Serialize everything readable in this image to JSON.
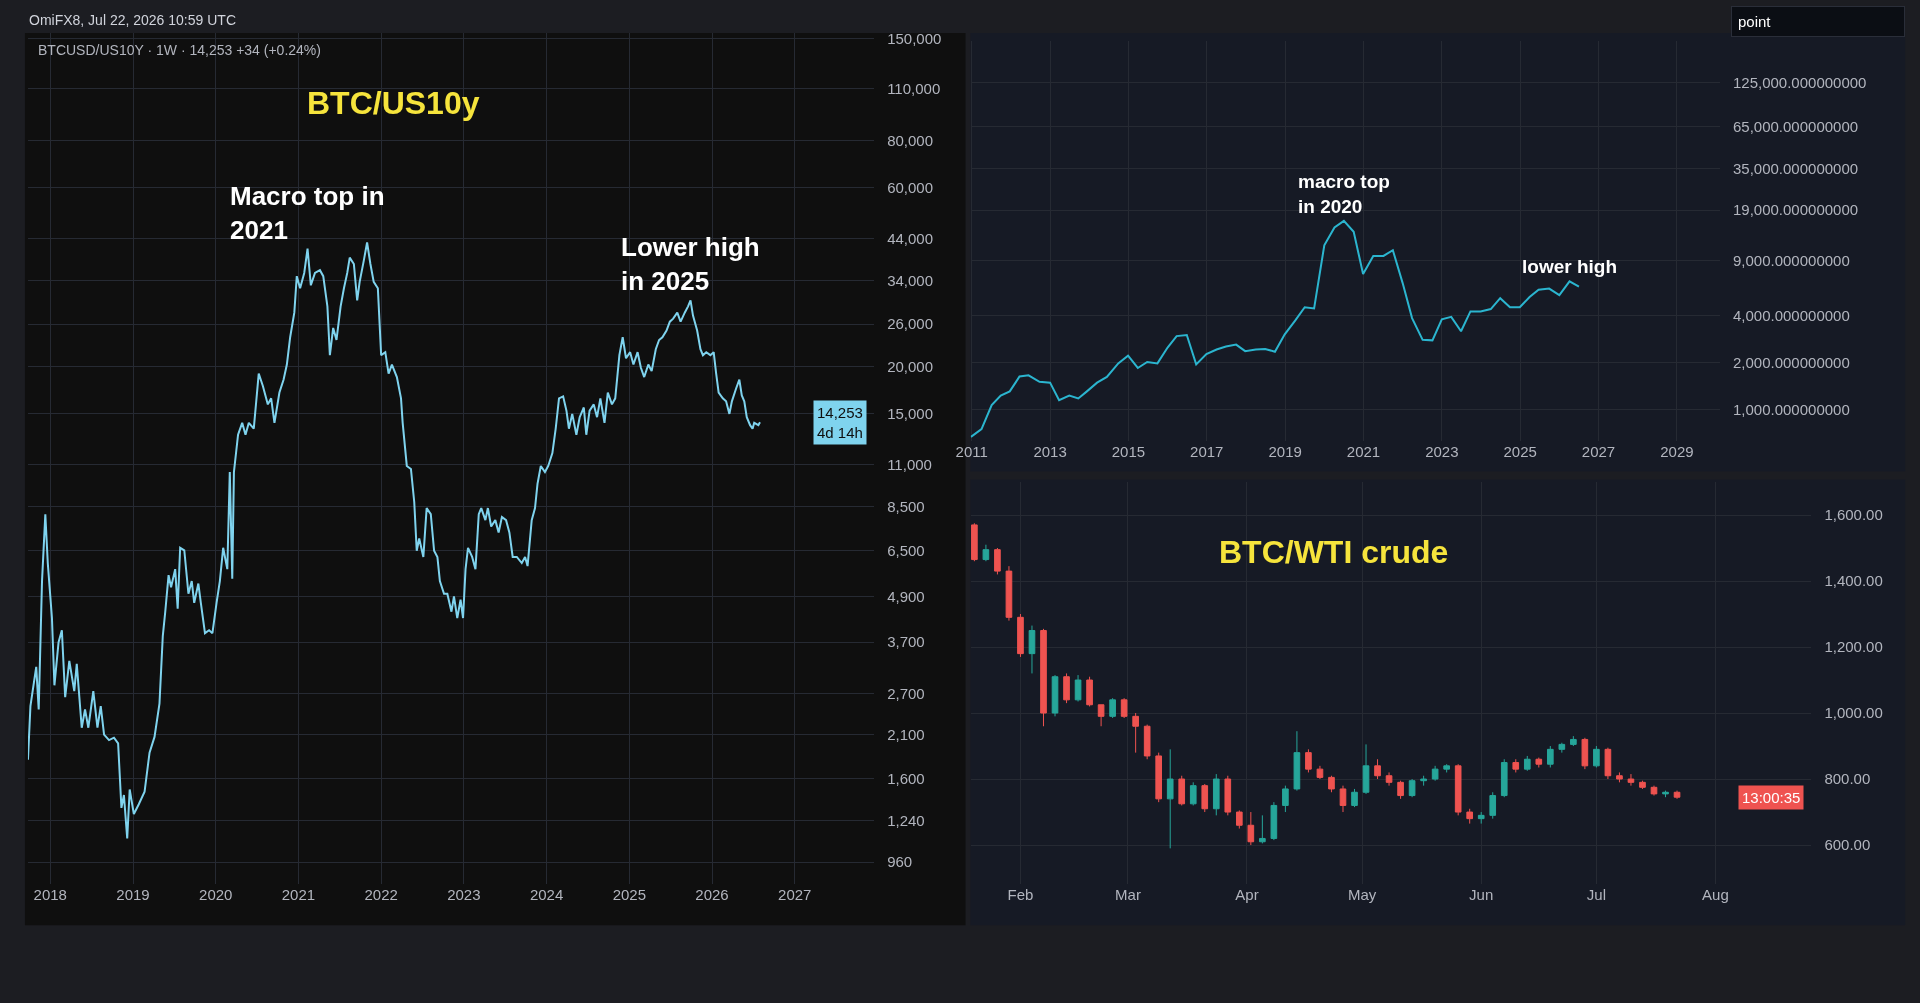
{
  "chart_data": [
    {
      "type": "line",
      "title": "BTC/US10y",
      "subtitle": "BTCUSD/US10Y · 1W · 14,253 +34 (+0.24%)",
      "log": true,
      "grid": true,
      "xlim": [
        2017.73,
        2027.96
      ],
      "xticks": [
        2018,
        2019,
        2020,
        2021,
        2022,
        2023,
        2024,
        2025,
        2026,
        2027
      ],
      "ylim": [
        840,
        155000
      ],
      "yticks": [
        {
          "value": 960,
          "label": "960"
        },
        {
          "value": 1240,
          "label": "1,240"
        },
        {
          "value": 1600,
          "label": "1,600"
        },
        {
          "value": 2100,
          "label": "2,100"
        },
        {
          "value": 2700,
          "label": "2,700"
        },
        {
          "value": 3700,
          "label": "3,700"
        },
        {
          "value": 4900,
          "label": "4,900"
        },
        {
          "value": 6500,
          "label": "6,500"
        },
        {
          "value": 8500,
          "label": "8,500"
        },
        {
          "value": 11000,
          "label": "11,000"
        },
        {
          "value": 15000,
          "label": "15,000"
        },
        {
          "value": 20000,
          "label": "20,000"
        },
        {
          "value": 26000,
          "label": "26,000"
        },
        {
          "value": 34000,
          "label": "34,000"
        },
        {
          "value": 44000,
          "label": "44,000"
        },
        {
          "value": 60000,
          "label": "60,000"
        },
        {
          "value": 80000,
          "label": "80,000"
        },
        {
          "value": 110000,
          "label": "110,000"
        },
        {
          "value": 150000,
          "label": "150,000"
        }
      ],
      "x": [
        2017.73,
        2017.76,
        2017.83,
        2017.86,
        2017.9,
        2017.94,
        2017.97,
        2018.02,
        2018.05,
        2018.1,
        2018.14,
        2018.18,
        2018.23,
        2018.29,
        2018.32,
        2018.38,
        2018.42,
        2018.46,
        2018.52,
        2018.57,
        2018.61,
        2018.65,
        2018.71,
        2018.77,
        2018.82,
        2018.86,
        2018.89,
        2018.93,
        2018.96,
        2019.01,
        2019.07,
        2019.14,
        2019.2,
        2019.26,
        2019.32,
        2019.36,
        2019.39,
        2019.43,
        2019.46,
        2019.51,
        2019.54,
        2019.57,
        2019.62,
        2019.67,
        2019.71,
        2019.74,
        2019.79,
        2019.82,
        2019.87,
        2019.92,
        2019.96,
        2020.01,
        2020.05,
        2020.09,
        2020.14,
        2020.17,
        2020.2,
        2020.22,
        2020.27,
        2020.32,
        2020.36,
        2020.4,
        2020.46,
        2020.52,
        2020.57,
        2020.63,
        2020.67,
        2020.71,
        2020.77,
        2020.82,
        2020.86,
        2020.9,
        2020.95,
        2020.98,
        2021.02,
        2021.07,
        2021.11,
        2021.15,
        2021.2,
        2021.26,
        2021.3,
        2021.35,
        2021.38,
        2021.42,
        2021.46,
        2021.51,
        2021.55,
        2021.59,
        2021.62,
        2021.67,
        2021.71,
        2021.74,
        2021.79,
        2021.83,
        2021.87,
        2021.91,
        2021.96,
        2022.0,
        2022.05,
        2022.09,
        2022.13,
        2022.19,
        2022.24,
        2022.26,
        2022.31,
        2022.36,
        2022.4,
        2022.43,
        2022.46,
        2022.51,
        2022.55,
        2022.6,
        2022.64,
        2022.68,
        2022.71,
        2022.76,
        2022.8,
        2022.85,
        2022.88,
        2022.92,
        2022.96,
        2022.99,
        2023.02,
        2023.05,
        2023.1,
        2023.14,
        2023.18,
        2023.21,
        2023.26,
        2023.29,
        2023.33,
        2023.38,
        2023.42,
        2023.46,
        2023.51,
        2023.55,
        2023.59,
        2023.64,
        2023.7,
        2023.74,
        2023.77,
        2023.82,
        2023.86,
        2023.89,
        2023.93,
        2023.98,
        2024.02,
        2024.07,
        2024.11,
        2024.15,
        2024.2,
        2024.24,
        2024.27,
        2024.31,
        2024.36,
        2024.4,
        2024.45,
        2024.48,
        2024.52,
        2024.57,
        2024.61,
        2024.65,
        2024.7,
        2024.74,
        2024.79,
        2024.83,
        2024.88,
        2024.92,
        2024.96,
        2025.01,
        2025.05,
        2025.1,
        2025.14,
        2025.18,
        2025.23,
        2025.27,
        2025.32,
        2025.36,
        2025.4,
        2025.45,
        2025.49,
        2025.53,
        2025.58,
        2025.62,
        2025.67,
        2025.71,
        2025.74,
        2025.77,
        2025.82,
        2025.86,
        2025.89,
        2025.93,
        2025.98,
        2026.02,
        2026.05,
        2026.08,
        2026.13,
        2026.17,
        2026.21,
        2026.24,
        2026.29,
        2026.33,
        2026.36,
        2026.39,
        2026.42,
        2026.46,
        2026.49,
        2026.51,
        2026.56,
        2026.58
      ],
      "series": [
        {
          "color": "#7fd3ee",
          "values": [
            1800,
            2500,
            3180,
            2450,
            5380,
            8100,
            6000,
            4290,
            2840,
            3700,
            3980,
            2640,
            3300,
            2740,
            3240,
            2190,
            2450,
            2190,
            2740,
            2190,
            2500,
            2100,
            2030,
            2060,
            1990,
            1340,
            1450,
            1110,
            1500,
            1290,
            1370,
            1480,
            1880,
            2070,
            2540,
            3840,
            4460,
            5580,
            5180,
            5790,
            4540,
            6600,
            6500,
            4980,
            5380,
            4710,
            5300,
            4710,
            3910,
            3980,
            3910,
            4710,
            5380,
            6600,
            5790,
            10500,
            5460,
            10500,
            13200,
            14200,
            13200,
            14200,
            13700,
            19200,
            17800,
            15900,
            16500,
            14200,
            17100,
            18500,
            20300,
            24000,
            27900,
            34900,
            32400,
            35600,
            41300,
            33000,
            35600,
            36200,
            34900,
            29000,
            21500,
            25400,
            23600,
            29000,
            32400,
            35600,
            39100,
            37600,
            30100,
            33700,
            38400,
            42900,
            37600,
            33700,
            32400,
            21500,
            21900,
            19200,
            20300,
            18800,
            16500,
            14200,
            10900,
            10700,
            8740,
            6480,
            6990,
            6240,
            8420,
            8110,
            6480,
            6240,
            5380,
            4980,
            4980,
            4460,
            4900,
            4290,
            4800,
            4290,
            5790,
            6600,
            6240,
            5790,
            8110,
            8420,
            7820,
            8420,
            7520,
            7820,
            7250,
            7970,
            7820,
            7250,
            6240,
            6240,
            6010,
            6240,
            5900,
            7820,
            8420,
            9770,
            10900,
            10500,
            10900,
            11800,
            13700,
            16500,
            16700,
            15300,
            13700,
            15000,
            13200,
            14700,
            15600,
            13200,
            15300,
            15900,
            14700,
            16500,
            14200,
            17100,
            15900,
            16500,
            21500,
            24000,
            21100,
            21900,
            20300,
            21900,
            19900,
            18800,
            20300,
            19500,
            22300,
            23600,
            24000,
            25000,
            26400,
            26900,
            27900,
            26400,
            27900,
            29000,
            30100,
            27400,
            25000,
            22300,
            21500,
            21900,
            21500,
            21900,
            19200,
            17100,
            16500,
            16200,
            15000,
            16200,
            17500,
            18500,
            16800,
            16200,
            14700,
            14000,
            13700,
            14200,
            14000,
            14253
          ]
        }
      ],
      "annotations": [
        {
          "text": "Macro top in\n2021",
          "x": 2021.11,
          "y": 41300
        },
        {
          "text": "Lower high\nin 2025",
          "x": 2025.74,
          "y": 30100
        },
        "OmiFX8, Jul 22, 2026 10:59 UTC",
        "14,253\n4d 14h"
      ]
    },
    {
      "type": "line",
      "log": true,
      "grid": true,
      "xlim": [
        2010.97,
        2030.1
      ],
      "xticks": [
        2011,
        2013,
        2015,
        2017,
        2019,
        2021,
        2023,
        2025,
        2027,
        2029
      ],
      "ylim": [
        630,
        230000
      ],
      "yticks": [
        {
          "value": 1000,
          "label": "1,000.000000000"
        },
        {
          "value": 2000,
          "label": "2,000.000000000"
        },
        {
          "value": 4000,
          "label": "4,000.000000000"
        },
        {
          "value": 9000,
          "label": "9,000.000000000"
        },
        {
          "value": 19000,
          "label": "19,000.000000000"
        },
        {
          "value": 35000,
          "label": "35,000.000000000"
        },
        {
          "value": 65000,
          "label": "65,000.000000000"
        },
        {
          "value": 125000,
          "label": "125,000.000000000"
        }
      ],
      "x": [
        2010.98,
        2011.25,
        2011.51,
        2011.74,
        2011.97,
        2012.22,
        2012.45,
        2012.73,
        2013.0,
        2013.23,
        2013.49,
        2013.72,
        2013.94,
        2014.2,
        2014.45,
        2014.74,
        2014.99,
        2015.24,
        2015.48,
        2015.74,
        2016.0,
        2016.23,
        2016.49,
        2016.73,
        2016.99,
        2017.25,
        2017.49,
        2017.75,
        2017.98,
        2018.25,
        2018.49,
        2018.74,
        2018.99,
        2019.26,
        2019.5,
        2019.74,
        2020.0,
        2020.26,
        2020.5,
        2020.75,
        2020.99,
        2021.25,
        2021.51,
        2021.75,
        2022.0,
        2022.24,
        2022.51,
        2022.76,
        2023.0,
        2023.24,
        2023.49,
        2023.73,
        2023.99,
        2024.25,
        2024.49,
        2024.74,
        2024.99,
        2025.24,
        2025.47,
        2025.74,
        2026.0,
        2026.26,
        2026.5
      ],
      "series": [
        {
          "color": "#2bb5cf",
          "values": [
            670,
            750,
            1070,
            1230,
            1310,
            1630,
            1660,
            1510,
            1490,
            1150,
            1230,
            1180,
            1310,
            1490,
            1620,
            1980,
            2220,
            1850,
            2020,
            1980,
            2500,
            2960,
            3010,
            1950,
            2270,
            2430,
            2540,
            2610,
            2370,
            2430,
            2450,
            2350,
            3040,
            3730,
            4530,
            4450,
            11300,
            14700,
            16200,
            13800,
            7390,
            9660,
            9660,
            10500,
            6470,
            3860,
            2800,
            2780,
            3790,
            3930,
            3180,
            4260,
            4260,
            4410,
            5180,
            4530,
            4530,
            5270,
            5870,
            5970,
            5420,
            6640,
            6140
          ]
        }
      ],
      "annotations": [
        {
          "text": "macro top\nin 2020",
          "x": 2020.5,
          "y": 16200
        },
        {
          "text": "lower high",
          "x": 2026.26,
          "y": 6640
        },
        "point"
      ]
    },
    {
      "type": "candlestick",
      "title": "BTC/WTI crude",
      "grid": true,
      "xlim": [
        "2026-01-19",
        "2026-08-26"
      ],
      "xticks": [
        {
          "value": "2026-02-01",
          "label": "Feb"
        },
        {
          "value": "2026-03-01",
          "label": "Mar"
        },
        {
          "value": "2026-04-01",
          "label": "Apr"
        },
        {
          "value": "2026-05-01",
          "label": "May"
        },
        {
          "value": "2026-06-01",
          "label": "Jun"
        },
        {
          "value": "2026-07-01",
          "label": "Jul"
        },
        {
          "value": "2026-08-01",
          "label": "Aug"
        }
      ],
      "ylim": [
        482,
        1700
      ],
      "yticks": [
        {
          "value": 600,
          "label": "600.00"
        },
        {
          "value": 800,
          "label": "800.00"
        },
        {
          "value": 1000,
          "label": "1,000.00"
        },
        {
          "value": 1200,
          "label": "1,200.00"
        },
        {
          "value": 1400,
          "label": "1,400.00"
        },
        {
          "value": 1600,
          "label": "1,600.00"
        }
      ],
      "x": [
        "2026-01-20",
        "2026-01-23",
        "2026-01-26",
        "2026-01-29",
        "2026-02-01",
        "2026-02-04",
        "2026-02-07",
        "2026-02-10",
        "2026-02-13",
        "2026-02-16",
        "2026-02-19",
        "2026-02-22",
        "2026-02-25",
        "2026-02-28",
        "2026-03-03",
        "2026-03-06",
        "2026-03-09",
        "2026-03-12",
        "2026-03-15",
        "2026-03-18",
        "2026-03-21",
        "2026-03-24",
        "2026-03-27",
        "2026-03-30",
        "2026-04-02",
        "2026-04-05",
        "2026-04-08",
        "2026-04-11",
        "2026-04-14",
        "2026-04-17",
        "2026-04-20",
        "2026-04-23",
        "2026-04-26",
        "2026-04-29",
        "2026-05-02",
        "2026-05-05",
        "2026-05-08",
        "2026-05-11",
        "2026-05-14",
        "2026-05-17",
        "2026-05-20",
        "2026-05-23",
        "2026-05-26",
        "2026-05-29",
        "2026-06-01",
        "2026-06-04",
        "2026-06-07",
        "2026-06-10",
        "2026-06-13",
        "2026-06-16",
        "2026-06-19",
        "2026-06-22",
        "2026-06-25",
        "2026-06-28",
        "2026-07-01",
        "2026-07-04",
        "2026-07-07",
        "2026-07-10",
        "2026-07-13",
        "2026-07-16",
        "2026-07-19",
        "2026-07-22"
      ],
      "ohlc": [
        [
          1570,
          1575,
          1460,
          1465
        ],
        [
          1465,
          1510,
          1460,
          1495
        ],
        [
          1495,
          1500,
          1420,
          1430
        ],
        [
          1430,
          1445,
          1280,
          1290
        ],
        [
          1290,
          1300,
          1170,
          1180
        ],
        [
          1180,
          1265,
          1120,
          1250
        ],
        [
          1250,
          1255,
          960,
          1000
        ],
        [
          1000,
          1115,
          990,
          1110
        ],
        [
          1110,
          1120,
          1030,
          1040
        ],
        [
          1040,
          1115,
          1035,
          1100
        ],
        [
          1100,
          1110,
          1020,
          1025
        ],
        [
          1025,
          1025,
          960,
          990
        ],
        [
          990,
          1045,
          985,
          1040
        ],
        [
          1040,
          1045,
          985,
          990
        ],
        [
          990,
          1000,
          880,
          960
        ],
        [
          960,
          965,
          860,
          870
        ],
        [
          870,
          880,
          730,
          740
        ],
        [
          740,
          890,
          590,
          800
        ],
        [
          800,
          810,
          720,
          725
        ],
        [
          725,
          790,
          720,
          780
        ],
        [
          780,
          785,
          700,
          710
        ],
        [
          710,
          815,
          690,
          800
        ],
        [
          800,
          810,
          690,
          700
        ],
        [
          700,
          705,
          650,
          660
        ],
        [
          660,
          700,
          600,
          610
        ],
        [
          610,
          690,
          605,
          620
        ],
        [
          620,
          730,
          615,
          720
        ],
        [
          720,
          780,
          700,
          770
        ],
        [
          770,
          945,
          765,
          880
        ],
        [
          880,
          890,
          820,
          830
        ],
        [
          830,
          840,
          800,
          805
        ],
        [
          805,
          810,
          760,
          770
        ],
        [
          770,
          780,
          700,
          720
        ],
        [
          720,
          770,
          715,
          760
        ],
        [
          760,
          905,
          755,
          840
        ],
        [
          840,
          860,
          800,
          810
        ],
        [
          810,
          820,
          780,
          790
        ],
        [
          790,
          795,
          740,
          750
        ],
        [
          750,
          800,
          745,
          795
        ],
        [
          795,
          810,
          780,
          800
        ],
        [
          800,
          840,
          795,
          830
        ],
        [
          830,
          845,
          820,
          840
        ],
        [
          840,
          845,
          690,
          700
        ],
        [
          700,
          710,
          665,
          680
        ],
        [
          680,
          700,
          665,
          690
        ],
        [
          690,
          760,
          680,
          750
        ],
        [
          750,
          860,
          745,
          850
        ],
        [
          850,
          860,
          820,
          830
        ],
        [
          830,
          870,
          825,
          860
        ],
        [
          860,
          865,
          835,
          845
        ],
        [
          845,
          900,
          835,
          890
        ],
        [
          890,
          910,
          880,
          905
        ],
        [
          905,
          930,
          900,
          920
        ],
        [
          920,
          925,
          830,
          840
        ],
        [
          840,
          900,
          835,
          890
        ],
        [
          890,
          895,
          800,
          810
        ],
        [
          810,
          820,
          790,
          800
        ],
        [
          800,
          815,
          780,
          790
        ],
        [
          790,
          795,
          770,
          775
        ],
        [
          775,
          780,
          750,
          755
        ],
        [
          755,
          765,
          745,
          760
        ],
        [
          760,
          765,
          740,
          745
        ]
      ],
      "annotations": [
        "13:00:35"
      ]
    }
  ]
}
